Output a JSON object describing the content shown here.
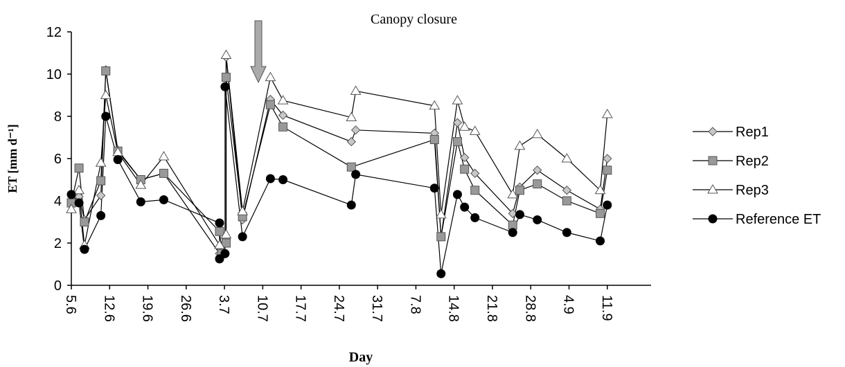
{
  "chart_data": {
    "type": "line",
    "x_label": "Day",
    "y_label": "ET [mm d⁻¹]",
    "annotation": "Canopy closure",
    "xlim": [
      0,
      106
    ],
    "xticks": [
      {
        "value": 0,
        "label": "5.6"
      },
      {
        "value": 7,
        "label": "12.6"
      },
      {
        "value": 14,
        "label": "19.6"
      },
      {
        "value": 21,
        "label": "26.6"
      },
      {
        "value": 28,
        "label": "3.7"
      },
      {
        "value": 35,
        "label": "10.7"
      },
      {
        "value": 42,
        "label": "17.7"
      },
      {
        "value": 49,
        "label": "24.7"
      },
      {
        "value": 56,
        "label": "31.7"
      },
      {
        "value": 63,
        "label": "7.8"
      },
      {
        "value": 70,
        "label": "14.8"
      },
      {
        "value": 77,
        "label": "21.8"
      },
      {
        "value": 84,
        "label": "28.8"
      },
      {
        "value": 91,
        "label": "4.9"
      },
      {
        "value": 98,
        "label": "11.9"
      }
    ],
    "ylim": [
      0,
      12
    ],
    "yticks": [
      0,
      2,
      4,
      6,
      8,
      10,
      12
    ],
    "grid": false,
    "legend": "right",
    "series": [
      {
        "name": "Rep1",
        "color": "#c8c8c8",
        "marker": "diamond",
        "x": [
          0,
          1.4,
          2.4,
          5.4,
          6.3,
          8.5,
          12.7,
          16.9,
          27.1,
          28.3,
          28.3,
          31.3,
          36.4,
          38.7,
          51.2,
          52,
          66.4,
          67.6,
          70.6,
          71.9,
          73.8,
          80.7,
          82,
          85.2,
          90.6,
          96.7,
          98
        ],
        "values": [
          4.0,
          4.2,
          3.1,
          4.25,
          10.2,
          6.4,
          5.0,
          5.3,
          1.5,
          2.2,
          10.8,
          3.1,
          8.8,
          8.05,
          6.8,
          7.35,
          7.2,
          2.3,
          7.7,
          6.05,
          5.3,
          3.4,
          4.65,
          5.45,
          4.5,
          3.6,
          6.0
        ]
      },
      {
        "name": "Rep2",
        "color": "#999999",
        "marker": "square",
        "x": [
          0,
          1.4,
          2.4,
          5.4,
          6.3,
          8.5,
          12.7,
          16.9,
          27.1,
          27.5,
          28.3,
          28.3,
          31.3,
          36.4,
          38.7,
          51.2,
          66.4,
          67.6,
          70.6,
          71.9,
          73.8,
          80.7,
          82,
          85.2,
          90.6,
          96.7,
          98
        ],
        "values": [
          3.9,
          5.55,
          3.0,
          4.95,
          10.15,
          6.35,
          5.0,
          5.3,
          2.55,
          1.5,
          2.0,
          9.85,
          3.25,
          8.55,
          7.5,
          5.6,
          6.9,
          2.3,
          6.8,
          5.5,
          4.5,
          2.85,
          4.5,
          4.8,
          4.0,
          3.4,
          5.45
        ]
      },
      {
        "name": "Rep3",
        "color": "#ffffff",
        "marker": "triangle",
        "x": [
          0,
          1.4,
          2.4,
          5.4,
          6.3,
          8.5,
          12.7,
          16.9,
          27.1,
          28.3,
          28.3,
          31.3,
          36.4,
          38.7,
          51.2,
          52,
          66.4,
          67.6,
          70.6,
          71.9,
          73.8,
          80.7,
          82,
          85.2,
          90.6,
          96.7,
          98
        ],
        "values": [
          3.6,
          4.5,
          1.9,
          5.8,
          9.0,
          6.3,
          4.75,
          6.1,
          1.9,
          2.4,
          10.9,
          3.5,
          9.85,
          8.75,
          7.95,
          9.2,
          8.5,
          3.35,
          8.75,
          7.5,
          7.3,
          4.3,
          6.6,
          7.15,
          6.0,
          4.5,
          8.1
        ]
      },
      {
        "name": "Reference ET",
        "color": "#000000",
        "marker": "circle",
        "x": [
          0,
          1.4,
          2.4,
          5.4,
          6.3,
          8.5,
          12.7,
          16.9,
          27.1,
          27.1,
          28.1,
          28.1,
          31.3,
          36.4,
          38.7,
          51.2,
          52,
          66.4,
          67.6,
          70.6,
          71.9,
          73.8,
          80.7,
          82,
          85.2,
          90.6,
          96.7,
          98
        ],
        "values": [
          4.3,
          3.9,
          1.7,
          3.3,
          8.0,
          5.95,
          3.95,
          4.05,
          2.95,
          1.25,
          1.5,
          9.4,
          2.3,
          5.05,
          5.0,
          3.8,
          5.25,
          4.6,
          0.55,
          4.3,
          3.7,
          3.2,
          2.5,
          3.35,
          3.1,
          2.5,
          2.1,
          3.8
        ]
      }
    ]
  }
}
